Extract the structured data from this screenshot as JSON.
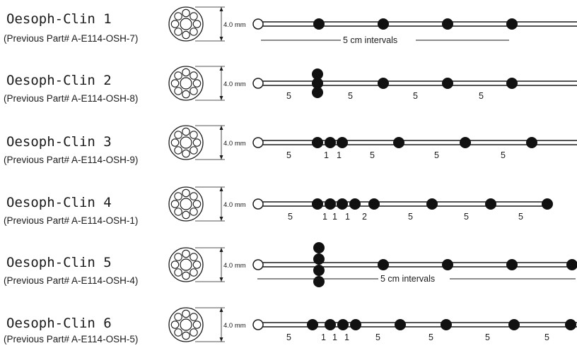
{
  "catheters": [
    {
      "name": "Oesoph-Clin 1",
      "part": "(Previous Part# A-E114-OSH-7)",
      "diameter": "4.0 mm",
      "channels": 8,
      "sensor_counts": [
        1,
        1,
        1,
        1
      ],
      "spacing_labels": [],
      "interval_note": "5 cm intervals"
    },
    {
      "name": "Oesoph-Clin 2",
      "part": "(Previous Part# A-E114-OSH-8)",
      "diameter": "4.0 mm",
      "channels": 8,
      "sensor_counts": [
        3,
        1,
        1,
        1
      ],
      "spacing_labels": [
        "5",
        "5",
        "5",
        "5"
      ],
      "interval_note": ""
    },
    {
      "name": "Oesoph-Clin 3",
      "part": "(Previous Part# A-E114-OSH-9)",
      "diameter": "4.0 mm",
      "channels": 8,
      "sensor_counts": [
        1,
        1,
        1,
        1,
        1,
        1
      ],
      "spacing_labels": [
        "5",
        "1",
        "1",
        "5",
        "5",
        "5"
      ],
      "interval_note": ""
    },
    {
      "name": "Oesoph-Clin 4",
      "part": "(Previous Part# A-E114-OSH-1)",
      "diameter": "4.0 mm",
      "channels": 8,
      "sensor_counts": [
        1,
        1,
        1,
        1,
        1,
        1,
        1,
        1
      ],
      "spacing_labels": [
        "5",
        "1",
        "1",
        "1",
        "2",
        "5",
        "5",
        "5"
      ],
      "interval_note": ""
    },
    {
      "name": "Oesoph-Clin 5",
      "part": "(Previous Part# A-E114-OSH-4)",
      "diameter": "4.0 mm",
      "channels": 8,
      "sensor_counts": [
        4,
        1,
        1,
        1,
        1
      ],
      "spacing_labels": [],
      "interval_note": "5 cm intervals"
    },
    {
      "name": "Oesoph-Clin 6",
      "part": "(Previous Part# A-E114-OSH-5)",
      "diameter": "4.0 mm",
      "channels": 8,
      "sensor_counts": [
        1,
        1,
        1,
        1,
        1,
        1,
        1,
        1
      ],
      "spacing_labels": [
        "5",
        "1",
        "1",
        "1",
        "5",
        "5",
        "5",
        "5"
      ],
      "interval_note": ""
    }
  ]
}
